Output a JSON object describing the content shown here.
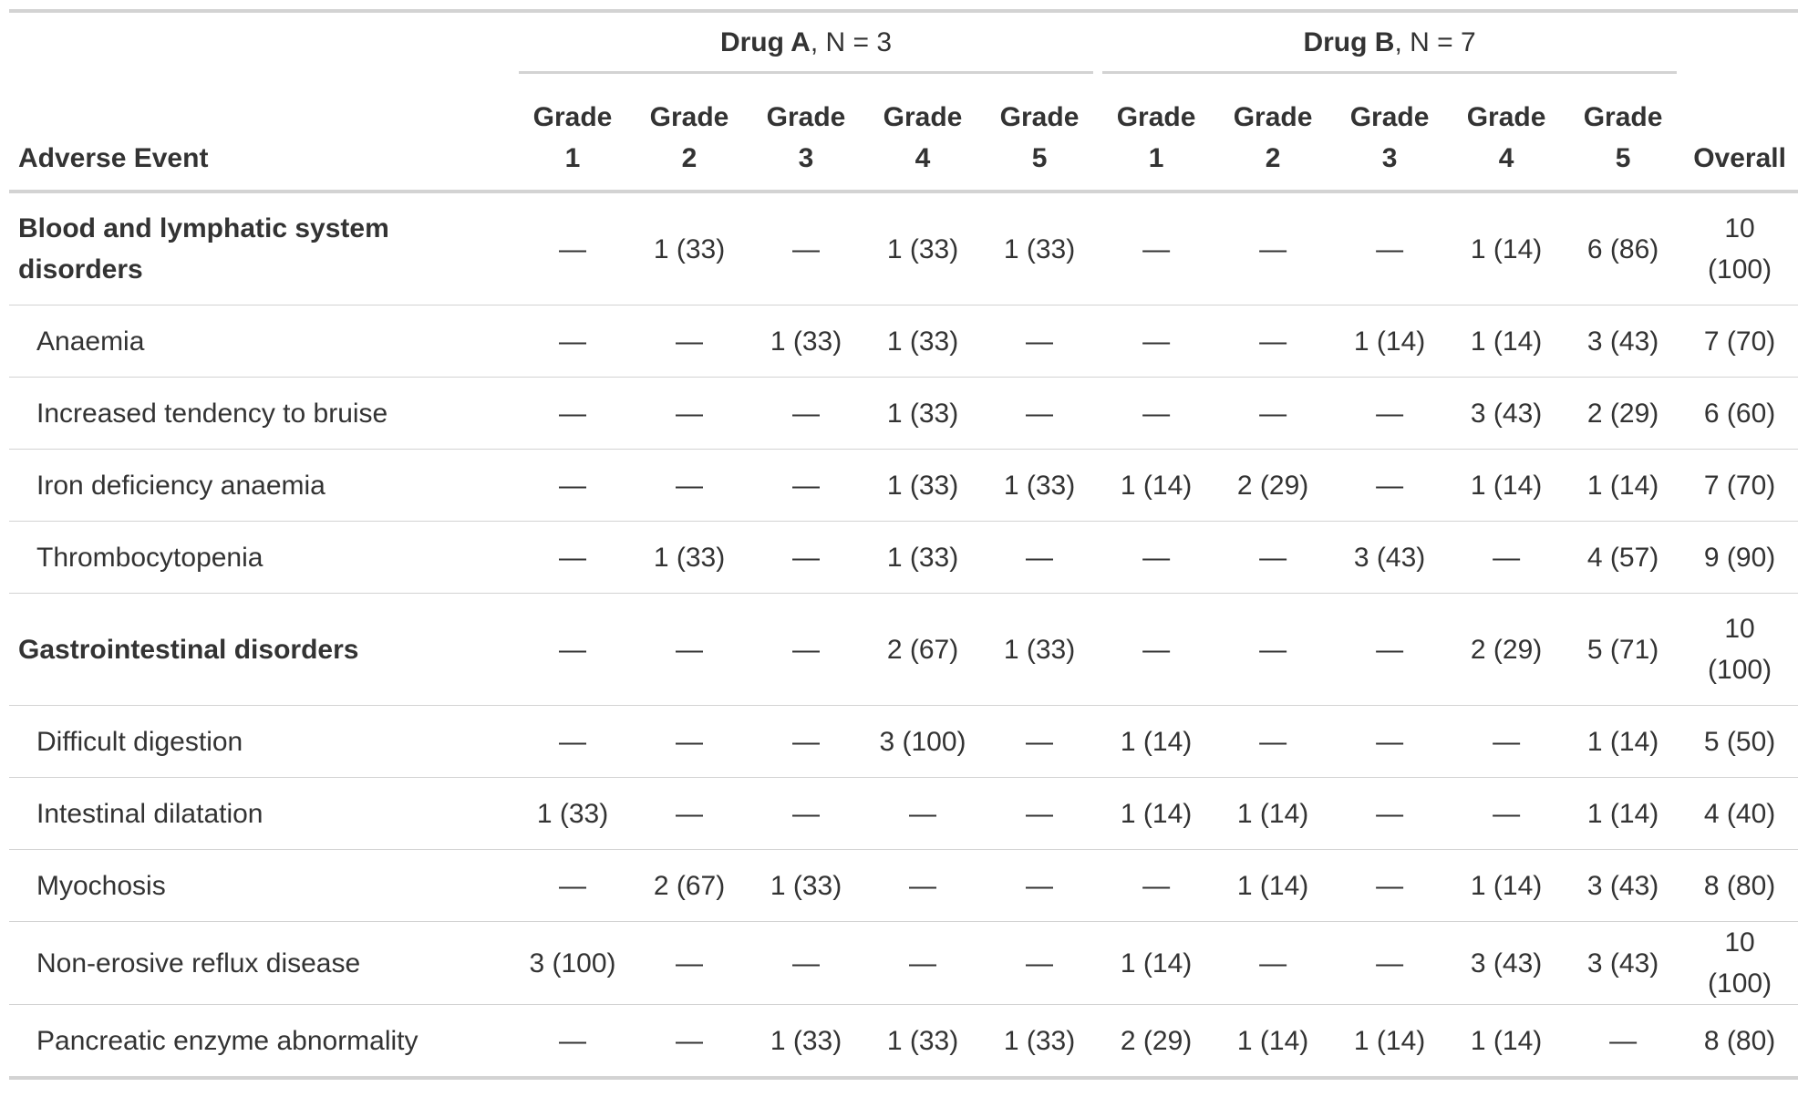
{
  "header": {
    "groups": [
      {
        "bold": "Drug A",
        "rest": ", N = 3"
      },
      {
        "bold": "Drug B",
        "rest": ", N = 7"
      }
    ],
    "label_column": "Adverse Event",
    "grade_columns": [
      "Grade 1",
      "Grade 2",
      "Grade 3",
      "Grade 4",
      "Grade 5",
      "Grade 1",
      "Grade 2",
      "Grade 3",
      "Grade 4",
      "Grade 5"
    ],
    "overall_column": "Overall"
  },
  "table": {
    "groups": [
      {
        "name": "Blood and lymphatic system disorders",
        "cells": [
          "—",
          "1 (33)",
          "—",
          "1 (33)",
          "1 (33)",
          "—",
          "—",
          "—",
          "1 (14)",
          "6 (86)",
          "10 (100)"
        ],
        "items": [
          {
            "name": "Anaemia",
            "cells": [
              "—",
              "—",
              "1 (33)",
              "1 (33)",
              "—",
              "—",
              "—",
              "1 (14)",
              "1 (14)",
              "3 (43)",
              "7 (70)"
            ]
          },
          {
            "name": "Increased tendency to bruise",
            "cells": [
              "—",
              "—",
              "—",
              "1 (33)",
              "—",
              "—",
              "—",
              "—",
              "3 (43)",
              "2 (29)",
              "6 (60)"
            ]
          },
          {
            "name": "Iron deficiency anaemia",
            "cells": [
              "—",
              "—",
              "—",
              "1 (33)",
              "1 (33)",
              "1 (14)",
              "2 (29)",
              "—",
              "1 (14)",
              "1 (14)",
              "7 (70)"
            ]
          },
          {
            "name": "Thrombocytopenia",
            "cells": [
              "—",
              "1 (33)",
              "—",
              "1 (33)",
              "—",
              "—",
              "—",
              "3 (43)",
              "—",
              "4 (57)",
              "9 (90)"
            ]
          }
        ]
      },
      {
        "name": "Gastrointestinal disorders",
        "cells": [
          "—",
          "—",
          "—",
          "2 (67)",
          "1 (33)",
          "—",
          "—",
          "—",
          "2 (29)",
          "5 (71)",
          "10 (100)"
        ],
        "items": [
          {
            "name": "Difficult digestion",
            "cells": [
              "—",
              "—",
              "—",
              "3 (100)",
              "—",
              "1 (14)",
              "—",
              "—",
              "—",
              "1 (14)",
              "5 (50)"
            ]
          },
          {
            "name": "Intestinal dilatation",
            "cells": [
              "1 (33)",
              "—",
              "—",
              "—",
              "—",
              "1 (14)",
              "1 (14)",
              "—",
              "—",
              "1 (14)",
              "4 (40)"
            ]
          },
          {
            "name": "Myochosis",
            "cells": [
              "—",
              "2 (67)",
              "1 (33)",
              "—",
              "—",
              "—",
              "1 (14)",
              "—",
              "1 (14)",
              "3 (43)",
              "8 (80)"
            ]
          },
          {
            "name": "Non-erosive reflux disease",
            "cells": [
              "3 (100)",
              "—",
              "—",
              "—",
              "—",
              "1 (14)",
              "—",
              "—",
              "3 (43)",
              "3 (43)",
              "10 (100)"
            ]
          },
          {
            "name": "Pancreatic enzyme abnormality",
            "cells": [
              "—",
              "—",
              "1 (33)",
              "1 (33)",
              "1 (33)",
              "2 (29)",
              "1 (14)",
              "1 (14)",
              "1 (14)",
              "—",
              "8 (80)"
            ]
          }
        ]
      }
    ]
  }
}
